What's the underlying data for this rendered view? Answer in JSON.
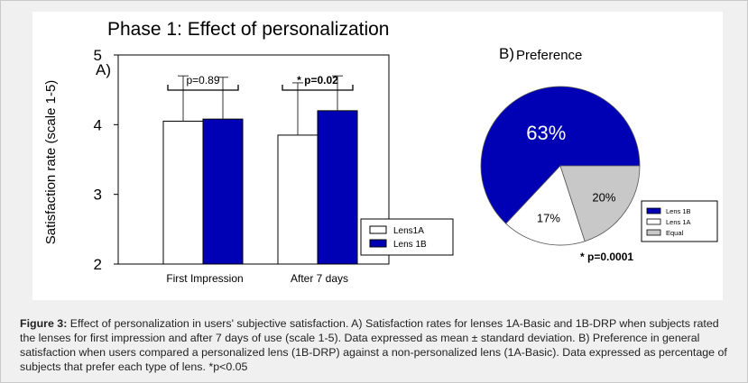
{
  "colors": {
    "lens1a": "#ffffff",
    "lens1b": "#0000b4",
    "equal": "#c8c8c8",
    "panel_bg": "#f0f0f0"
  },
  "chart_data": [
    {
      "type": "bar",
      "title": "Phase 1: Effect of personalization",
      "panel_label": "A)",
      "ylabel": "Satisfaction rate (scale 1-5)",
      "xlabel": "",
      "ylim": [
        2,
        5
      ],
      "yticks": [
        "2",
        "3",
        "4",
        "5"
      ],
      "categories": [
        "First Impression",
        "After 7 days"
      ],
      "series": [
        {
          "name": "Lens1A",
          "color": "#ffffff",
          "values": [
            4.05,
            3.85
          ],
          "errors": [
            0.65,
            0.75
          ]
        },
        {
          "name": "Lens 1B",
          "color": "#0000b4",
          "values": [
            4.08,
            4.2
          ],
          "errors": [
            0.6,
            0.5
          ]
        }
      ],
      "annotations": [
        "p=0.89",
        "* p=0.02"
      ],
      "legend": "bottom-right"
    },
    {
      "type": "pie",
      "title": "Preference",
      "panel_label": "B)",
      "slices": [
        {
          "name": "Lens 1B",
          "value": 63,
          "label": "63%",
          "color": "#0000b4"
        },
        {
          "name": "Lens 1A",
          "value": 17,
          "label": "17%",
          "color": "#ffffff"
        },
        {
          "name": "Equal",
          "value": 20,
          "label": "20%",
          "color": "#c8c8c8"
        }
      ],
      "annotation": "* p=0.0001",
      "legend": "right"
    }
  ],
  "caption": {
    "label": "Figure 3:",
    "text": " Effect of personalization in users' subjective satisfaction. A) Satisfaction rates for lenses 1A-Basic and 1B-DRP when subjects rated the lenses for first impression and after 7 days of use (scale 1-5). Data expressed as mean ± standard deviation. B) Preference in general satisfaction when users compared a personalized lens (1B-DRP) against a non-personalized lens (1A-Basic). Data expressed as percentage of subjects that prefer each type of lens. *p<0.05"
  }
}
